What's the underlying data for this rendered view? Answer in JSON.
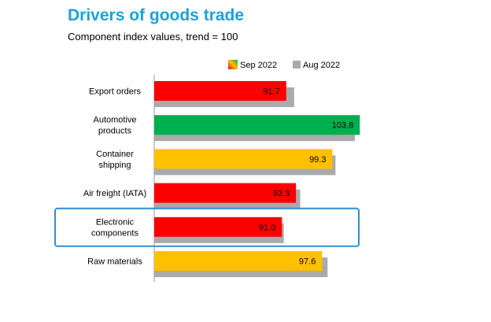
{
  "header": {
    "title": "Drivers of goods trade",
    "subtitle": "Component index values, trend = 100"
  },
  "chart_data": {
    "type": "bar",
    "orientation": "horizontal",
    "title": "Drivers of goods trade",
    "subtitle": "Component index values, trend = 100",
    "categories": [
      [
        "Export orders"
      ],
      [
        "Automotive",
        "products"
      ],
      [
        "Container",
        "shipping"
      ],
      [
        "Air freight (IATA)"
      ],
      [
        "Electronic",
        "components"
      ],
      [
        "Raw materials"
      ]
    ],
    "series": [
      {
        "name": "Sep 2022",
        "values": [
          91.7,
          103.8,
          99.3,
          93.3,
          91.0,
          97.6
        ],
        "colors": [
          "#ff0000",
          "#00b050",
          "#ffc000",
          "#ff0000",
          "#ff0000",
          "#ffc000"
        ],
        "data_labels": [
          "91.7",
          "103.8",
          "99.3",
          "93.3",
          "91.0",
          "97.6"
        ]
      },
      {
        "name": "Aug 2022",
        "values": [
          93.0,
          103.0,
          99.8,
          94.0,
          91.3,
          98.5
        ],
        "color": "#aaaaaa"
      }
    ],
    "xlim": [
      70,
      110
    ],
    "legend_position": "top-right",
    "highlighted_category": "Electronic components",
    "highlight_color": "#2e8fd6"
  }
}
